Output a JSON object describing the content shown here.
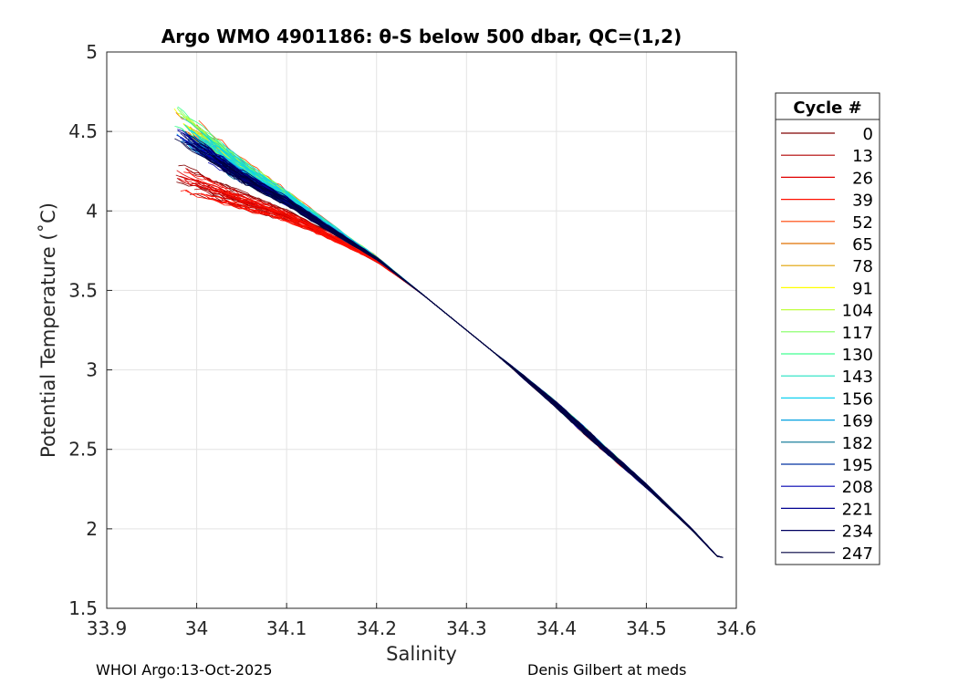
{
  "chart_data": {
    "type": "line",
    "title": "Argo WMO 4901186: θ-S below 500 dbar,  QC=(1,2)",
    "xlabel": "Salinity",
    "ylabel": "Potential Temperature (˚C)",
    "xlim": [
      33.9,
      34.6
    ],
    "ylim": [
      1.5,
      5
    ],
    "xticks": [
      "33.9",
      "34",
      "34.1",
      "34.2",
      "34.3",
      "34.4",
      "34.5",
      "34.6"
    ],
    "yticks": [
      "1.5",
      "2",
      "2.5",
      "3",
      "3.5",
      "4",
      "4.5",
      "5"
    ],
    "grid": true,
    "legend": {
      "title": "Cycle #",
      "placement": "right",
      "entries": [
        {
          "name": "0",
          "color": "#800000"
        },
        {
          "name": "13",
          "color": "#b00000"
        },
        {
          "name": "26",
          "color": "#e00000"
        },
        {
          "name": "39",
          "color": "#ff1000"
        },
        {
          "name": "52",
          "color": "#ff4000"
        },
        {
          "name": "65",
          "color": "#e07000"
        },
        {
          "name": "78",
          "color": "#e0a000"
        },
        {
          "name": "91",
          "color": "#ffff00"
        },
        {
          "name": "104",
          "color": "#c0ff40"
        },
        {
          "name": "117",
          "color": "#80ff60"
        },
        {
          "name": "130",
          "color": "#40ff90"
        },
        {
          "name": "143",
          "color": "#20e0c0"
        },
        {
          "name": "156",
          "color": "#10d0f0"
        },
        {
          "name": "169",
          "color": "#00a0e0"
        },
        {
          "name": "182",
          "color": "#007090"
        },
        {
          "name": "195",
          "color": "#0030a0"
        },
        {
          "name": "208",
          "color": "#0000b0"
        },
        {
          "name": "221",
          "color": "#000090"
        },
        {
          "name": "234",
          "color": "#000060"
        },
        {
          "name": "247",
          "color": "#000040"
        }
      ]
    },
    "series_envelope": {
      "points": [
        {
          "salinity": 33.98,
          "theta": 4.45
        },
        {
          "salinity": 34.05,
          "theta": 4.2
        },
        {
          "salinity": 34.1,
          "theta": 4.05
        },
        {
          "salinity": 34.2,
          "theta": 3.7
        },
        {
          "salinity": 34.25,
          "theta": 3.48
        },
        {
          "salinity": 34.3,
          "theta": 3.25
        },
        {
          "salinity": 34.35,
          "theta": 3.02
        },
        {
          "salinity": 34.4,
          "theta": 2.78
        },
        {
          "salinity": 34.45,
          "theta": 2.52
        },
        {
          "salinity": 34.5,
          "theta": 2.27
        },
        {
          "salinity": 34.55,
          "theta": 2.0
        },
        {
          "salinity": 34.58,
          "theta": 1.82
        }
      ]
    }
  },
  "footer": {
    "left": "WHOI Argo:13-Oct-2025",
    "right": "Denis Gilbert at meds"
  }
}
